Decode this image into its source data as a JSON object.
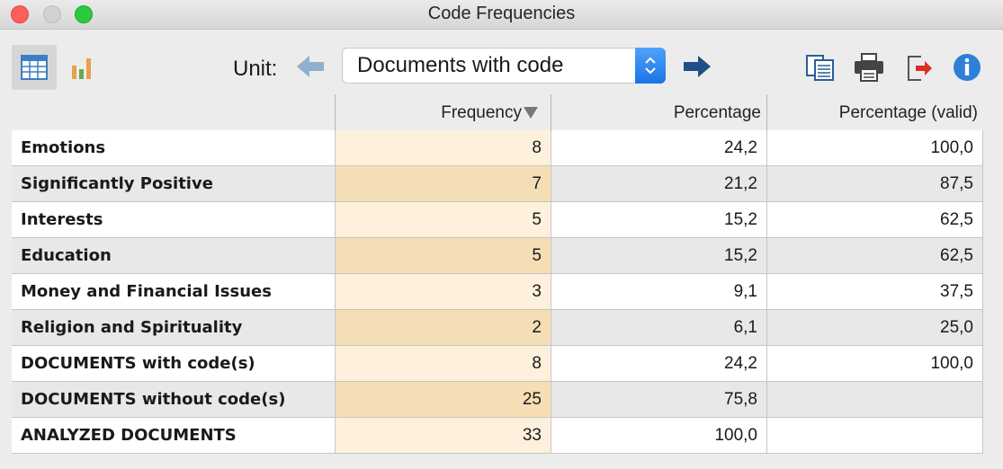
{
  "window": {
    "title": "Code Frequencies"
  },
  "toolbar": {
    "unit_label": "Unit:",
    "unit_value": "Documents with code",
    "icons": [
      "table-view-icon",
      "chart-view-icon",
      "arrow-left-icon",
      "arrow-right-icon",
      "copy-icon",
      "print-icon",
      "export-icon",
      "info-icon"
    ],
    "accent_color": "#1a73e8"
  },
  "table": {
    "columns": [
      "",
      "Frequency",
      "Percentage",
      "Percentage (valid)"
    ],
    "sorted_column": "Frequency",
    "rows": [
      {
        "label": "Emotions",
        "frequency": "8",
        "percentage": "24,2",
        "valid": "100,0"
      },
      {
        "label": "Significantly Positive",
        "frequency": "7",
        "percentage": "21,2",
        "valid": "87,5"
      },
      {
        "label": "Interests",
        "frequency": "5",
        "percentage": "15,2",
        "valid": "62,5"
      },
      {
        "label": "Education",
        "frequency": "5",
        "percentage": "15,2",
        "valid": "62,5"
      },
      {
        "label": "Money and Financial Issues",
        "frequency": "3",
        "percentage": "9,1",
        "valid": "37,5"
      },
      {
        "label": "Religion and Spirituality",
        "frequency": "2",
        "percentage": "6,1",
        "valid": "25,0"
      },
      {
        "label": "DOCUMENTS with code(s)",
        "frequency": "8",
        "percentage": "24,2",
        "valid": "100,0"
      },
      {
        "label": "DOCUMENTS without code(s)",
        "frequency": "25",
        "percentage": "75,8",
        "valid": ""
      },
      {
        "label": "ANALYZED DOCUMENTS",
        "frequency": "33",
        "percentage": "100,0",
        "valid": ""
      }
    ]
  }
}
